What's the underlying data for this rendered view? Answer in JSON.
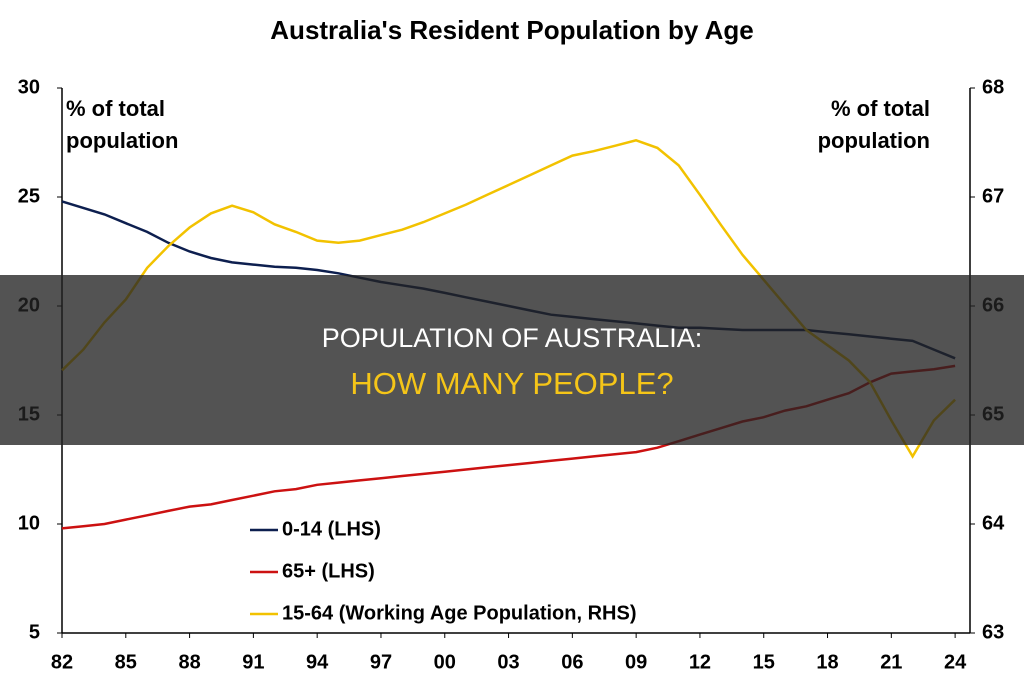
{
  "chart_data": {
    "type": "line",
    "title": "Australia's Resident Population by Age",
    "ylabel": [
      "% of total",
      "population"
    ],
    "y2label": [
      "% of total",
      "population"
    ],
    "x": [
      1982,
      1983,
      1984,
      1985,
      1986,
      1987,
      1988,
      1989,
      1990,
      1991,
      1992,
      1993,
      1994,
      1995,
      1996,
      1997,
      1998,
      1999,
      2000,
      2001,
      2002,
      2003,
      2004,
      2005,
      2006,
      2007,
      2008,
      2009,
      2010,
      2011,
      2012,
      2013,
      2014,
      2015,
      2016,
      2017,
      2018,
      2019,
      2020,
      2021,
      2022,
      2023,
      2024
    ],
    "xlim": [
      1982,
      2024.7
    ],
    "xticks": [
      {
        "value": 1982,
        "label": "82"
      },
      {
        "value": 1985,
        "label": "85"
      },
      {
        "value": 1988,
        "label": "88"
      },
      {
        "value": 1991,
        "label": "91"
      },
      {
        "value": 1994,
        "label": "94"
      },
      {
        "value": 1997,
        "label": "97"
      },
      {
        "value": 2000,
        "label": "00"
      },
      {
        "value": 2003,
        "label": "03"
      },
      {
        "value": 2006,
        "label": "06"
      },
      {
        "value": 2009,
        "label": "09"
      },
      {
        "value": 2012,
        "label": "12"
      },
      {
        "value": 2015,
        "label": "15"
      },
      {
        "value": 2018,
        "label": "18"
      },
      {
        "value": 2021,
        "label": "21"
      },
      {
        "value": 2024,
        "label": "24"
      }
    ],
    "ylim": [
      5,
      30
    ],
    "yticks": [
      5,
      10,
      15,
      20,
      25,
      30
    ],
    "y2lim": [
      63,
      68
    ],
    "y2ticks": [
      63,
      64,
      65,
      66,
      67,
      68
    ],
    "series": [
      {
        "name": "0-14 (LHS)",
        "color": "#0d1f4f",
        "values": [
          24.8,
          24.5,
          24.2,
          23.8,
          23.4,
          22.9,
          22.5,
          22.2,
          22.0,
          21.9,
          21.8,
          21.75,
          21.65,
          21.5,
          21.3,
          21.1,
          20.95,
          20.8,
          20.6,
          20.4,
          20.2,
          20.0,
          19.8,
          19.6,
          19.5,
          19.4,
          19.3,
          19.2,
          19.1,
          19.0,
          19.0,
          18.95,
          18.9,
          18.9,
          18.9,
          18.9,
          18.8,
          18.7,
          18.6,
          18.5,
          18.4,
          18.0,
          17.6
        ]
      },
      {
        "name": "65+ (LHS)",
        "color": "#cc1111",
        "values": [
          9.8,
          9.9,
          10.0,
          10.2,
          10.4,
          10.6,
          10.8,
          10.9,
          11.1,
          11.3,
          11.5,
          11.6,
          11.8,
          11.9,
          12.0,
          12.1,
          12.2,
          12.3,
          12.4,
          12.5,
          12.6,
          12.7,
          12.8,
          12.9,
          13.0,
          13.1,
          13.2,
          13.3,
          13.5,
          13.8,
          14.1,
          14.4,
          14.7,
          14.9,
          15.2,
          15.4,
          15.7,
          16.0,
          16.5,
          16.9,
          17.0,
          17.1,
          17.25
        ]
      },
      {
        "name": "15-64 (Working Age Population, RHS)",
        "color": "#f2c200",
        "axis": "y2",
        "values": [
          65.41,
          65.6,
          65.85,
          66.06,
          66.35,
          66.55,
          66.72,
          66.85,
          66.92,
          66.86,
          66.75,
          66.68,
          66.6,
          66.58,
          66.6,
          66.65,
          66.7,
          66.77,
          66.85,
          66.93,
          67.02,
          67.11,
          67.2,
          67.29,
          67.38,
          67.42,
          67.47,
          67.52,
          67.45,
          67.29,
          67.02,
          66.74,
          66.47,
          66.24,
          66.01,
          65.78,
          65.64,
          65.5,
          65.3,
          64.95,
          64.62,
          64.95,
          65.14
        ]
      }
    ]
  },
  "overlay": {
    "line1": "POPULATION OF AUSTRALIA:",
    "line2": "HOW MANY PEOPLE?"
  }
}
